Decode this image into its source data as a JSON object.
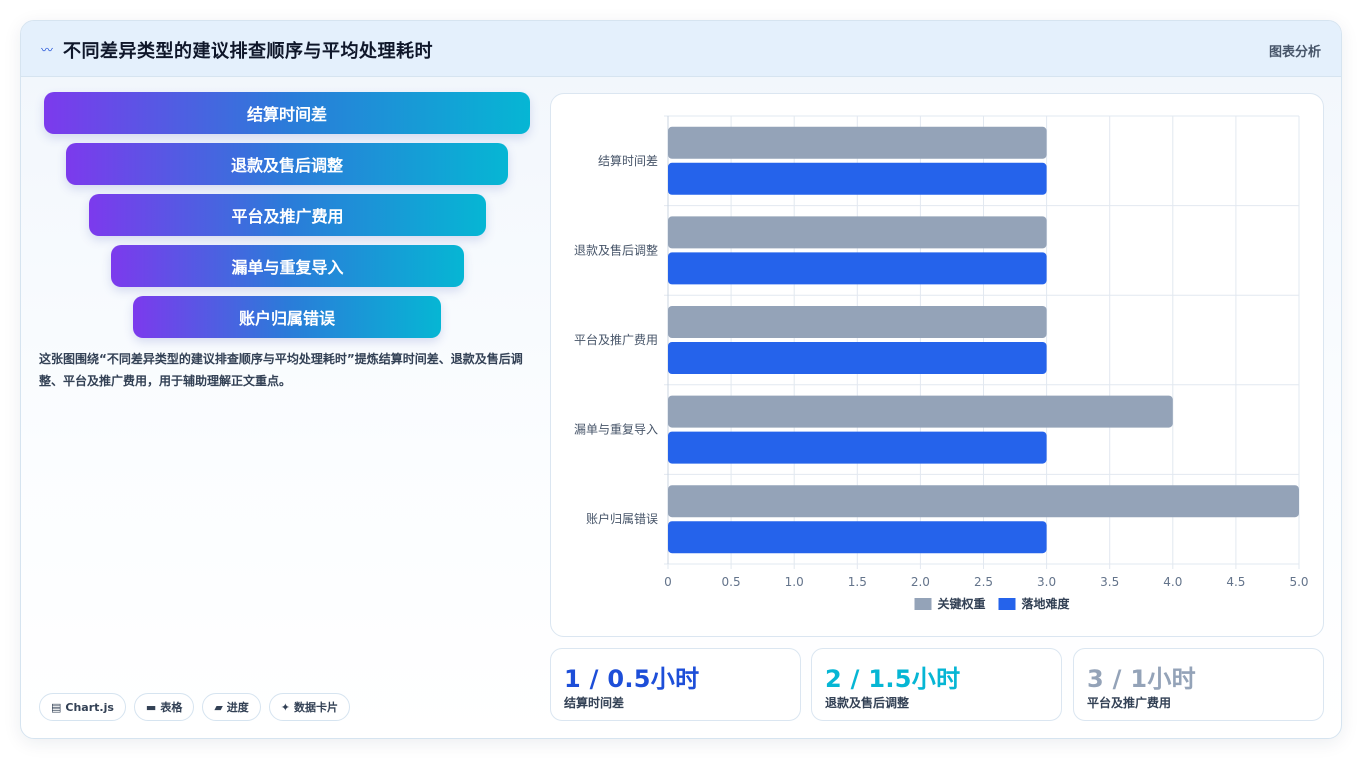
{
  "header": {
    "title": "不同差异类型的建议排查顺序与平均处理耗时",
    "tag": "图表分析",
    "icon": "wave-icon"
  },
  "funnel": {
    "items": [
      "结算时间差",
      "退款及售后调整",
      "平台及推广费用",
      "漏单与重复导入",
      "账户归属错误"
    ]
  },
  "description": "这张图围绕“不同差异类型的建议排查顺序与平均处理耗时”提炼结算时间差、退款及售后调整、平台及推广费用，用于辅助理解正文重点。",
  "pills": [
    {
      "icon": "chart-icon",
      "glyph": "▤",
      "label": "Chart.js"
    },
    {
      "icon": "table-icon",
      "glyph": "▬",
      "label": "表格"
    },
    {
      "icon": "progress-icon",
      "glyph": "▰",
      "label": "进度"
    },
    {
      "icon": "sparkle-icon",
      "glyph": "✦",
      "label": "数据卡片"
    }
  ],
  "chart_data": {
    "type": "bar",
    "orientation": "horizontal",
    "categories": [
      "结算时间差",
      "退款及售后调整",
      "平台及推广费用",
      "漏单与重复导入",
      "账户归属错误"
    ],
    "series": [
      {
        "name": "关键权重",
        "values": [
          3,
          3,
          3,
          4,
          5
        ],
        "color": "#94a3b8"
      },
      {
        "name": "落地难度",
        "values": [
          3,
          3,
          3,
          3,
          3
        ],
        "color": "#2563eb"
      }
    ],
    "xlim": [
      0,
      5
    ],
    "xticks": [
      "0",
      "0.5",
      "1.0",
      "1.5",
      "2.0",
      "2.5",
      "3.0",
      "3.5",
      "4.0",
      "4.5",
      "5.0"
    ],
    "grid": true,
    "legend": "bottom"
  },
  "stats": [
    {
      "value": "1 / 0.5小时",
      "label": "结算时间差",
      "color": "#1d4ed8"
    },
    {
      "value": "2 / 1.5小时",
      "label": "退款及售后调整",
      "color": "#06b6d4"
    },
    {
      "value": "3 / 1小时",
      "label": "平台及推广费用",
      "color": "#94a3b8"
    }
  ]
}
